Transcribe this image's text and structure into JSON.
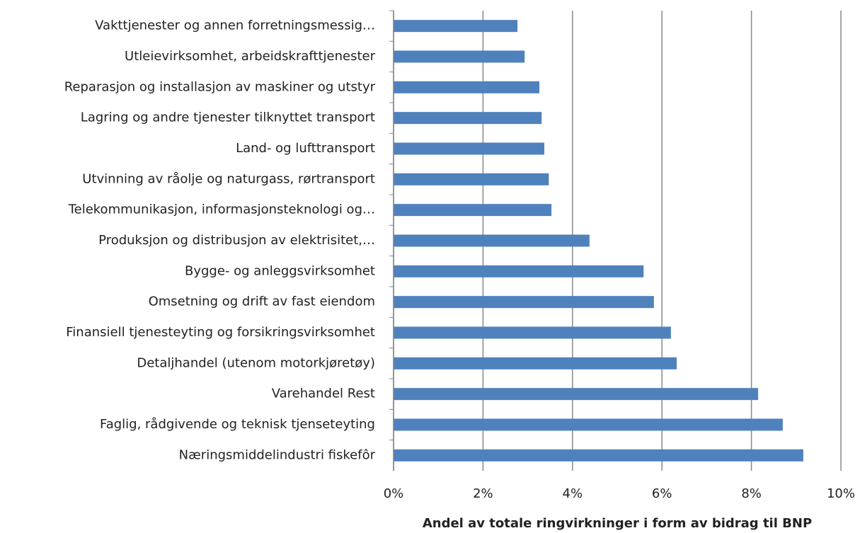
{
  "chart_data": {
    "type": "hbar",
    "x_label": "Andel av totale ringvirkninger i form av bidrag til BNP",
    "categories": [
      "Vakttjenester og annen forretningsmessig…",
      "Utleievirksomhet, arbeidskrafttjenester",
      "Reparasjon og installasjon av maskiner og utstyr",
      "Lagring og andre tjenester tilknyttet transport",
      "Land- og lufttransport",
      "Utvinning av råolje og naturgass, rørtransport",
      "Telekommunikasjon, informasjonsteknologi og…",
      "Produksjon og distribusjon av elektrisitet,…",
      "Bygge- og anleggsvirksomhet",
      "Omsetning og drift av fast eiendom",
      "Finansiell tjenesteyting og forsikringsvirksomhet",
      "Detaljhandel (utenom motorkjøretøy)",
      "Varehandel Rest",
      "Faglig, rådgivende og teknisk tjenseteyting",
      "Næringsmiddelindustri fiskefôr"
    ],
    "values": [
      2.77,
      2.93,
      3.26,
      3.31,
      3.37,
      3.47,
      3.53,
      4.38,
      5.59,
      5.82,
      6.2,
      6.33,
      8.15,
      8.7,
      9.16
    ],
    "color": "#4f81bd",
    "xlim": [
      0,
      10
    ],
    "xticks": [
      {
        "value": 0,
        "label": "0%"
      },
      {
        "value": 2,
        "label": "2%"
      },
      {
        "value": 4,
        "label": "4%"
      },
      {
        "value": 6,
        "label": "6%"
      },
      {
        "value": 8,
        "label": "8%"
      },
      {
        "value": 10,
        "label": "10%"
      }
    ],
    "grid": true
  }
}
